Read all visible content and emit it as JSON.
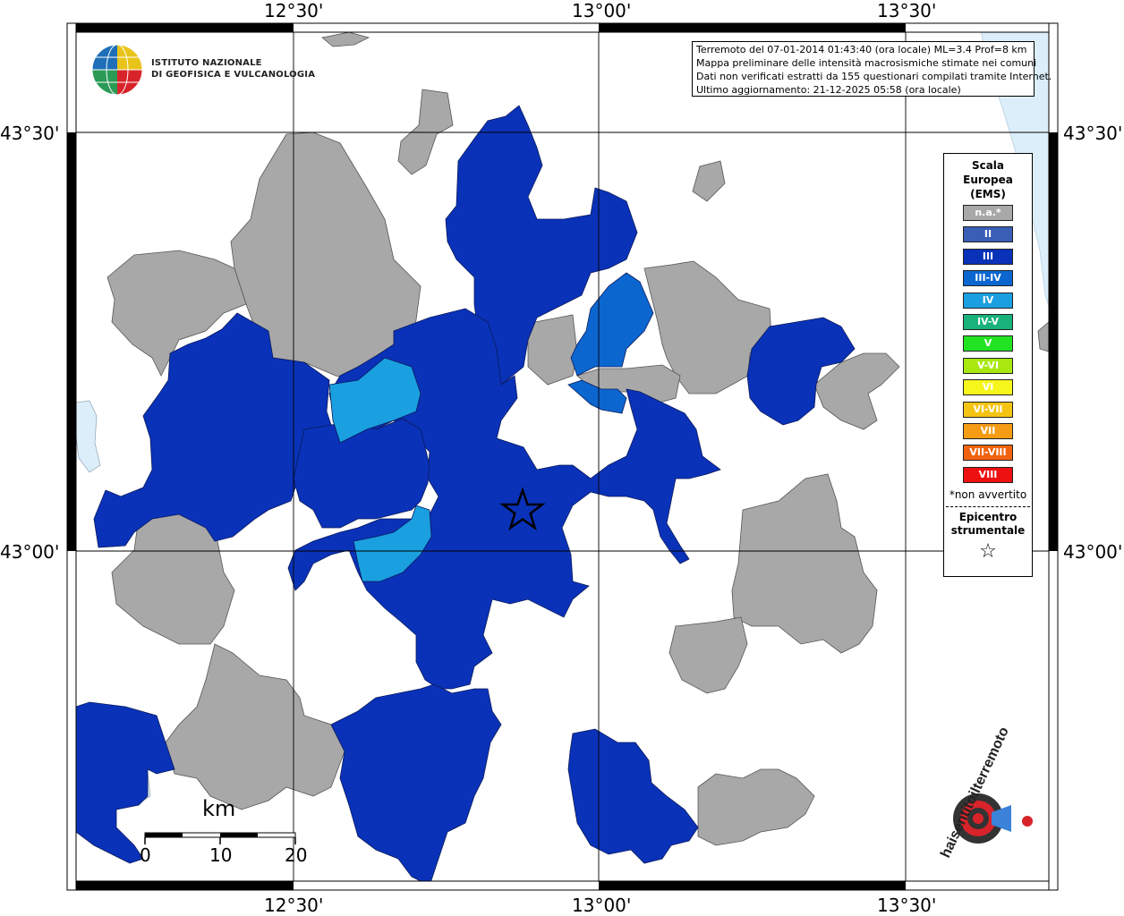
{
  "coordinates": {
    "top_lon_labels": [
      "12°30'",
      "13°00'",
      "13°30'"
    ],
    "bottom_lon_labels": [
      "12°30'",
      "13°00'",
      "13°30'"
    ],
    "left_lat_labels": [
      "43°30'",
      "43°00'"
    ],
    "right_lat_labels": [
      "43°30'",
      "43°00'"
    ]
  },
  "logo": {
    "line1": "ISTITUTO NAZIONALE",
    "line2": "DI GEOFISICA E VULCANOLOGIA"
  },
  "info": {
    "line1": "Terremoto del 07-01-2014 01:43:40 (ora locale) ML=3.4 Prof=8 km",
    "line2": "Mappa preliminare delle intensità macrosismiche stimate nei comuni",
    "line3": "Dati non verificati estratti da 155 questionari compilati tramite Internet.",
    "line4": "Ultimo aggiornamento: 21-12-2025 05:58 (ora locale)"
  },
  "legend": {
    "title": [
      "Scala",
      "Europea",
      "(EMS)"
    ],
    "items": [
      {
        "label": "n.a.*",
        "color": "#a8a8a8"
      },
      {
        "label": "II",
        "color": "#3a5db5"
      },
      {
        "label": "III",
        "color": "#0a32b8"
      },
      {
        "label": "III-IV",
        "color": "#0c66cf"
      },
      {
        "label": "IV",
        "color": "#1a9fe0"
      },
      {
        "label": "IV-V",
        "color": "#18b27a"
      },
      {
        "label": "V",
        "color": "#22e322"
      },
      {
        "label": "V-VI",
        "color": "#a8e810"
      },
      {
        "label": "VI",
        "color": "#f6f61c"
      },
      {
        "label": "VI-VII",
        "color": "#f4c414"
      },
      {
        "label": "VII",
        "color": "#f59c14"
      },
      {
        "label": "VII-VIII",
        "color": "#f2630f"
      },
      {
        "label": "VIII",
        "color": "#ee1111"
      }
    ],
    "note": "*non avvertito",
    "epicenter_line1": "Epicentro",
    "epicenter_line2": "strumentale",
    "epicenter_symbol": "☆"
  },
  "scale_bar": {
    "unit": "km",
    "ticks": [
      "0",
      "10",
      "20"
    ]
  },
  "colors": {
    "na": "#a8a8a8",
    "iii": "#0a32b8",
    "iii_iv": "#0c66cf",
    "iv": "#1a9fe0",
    "sea": "#dbeefa"
  }
}
